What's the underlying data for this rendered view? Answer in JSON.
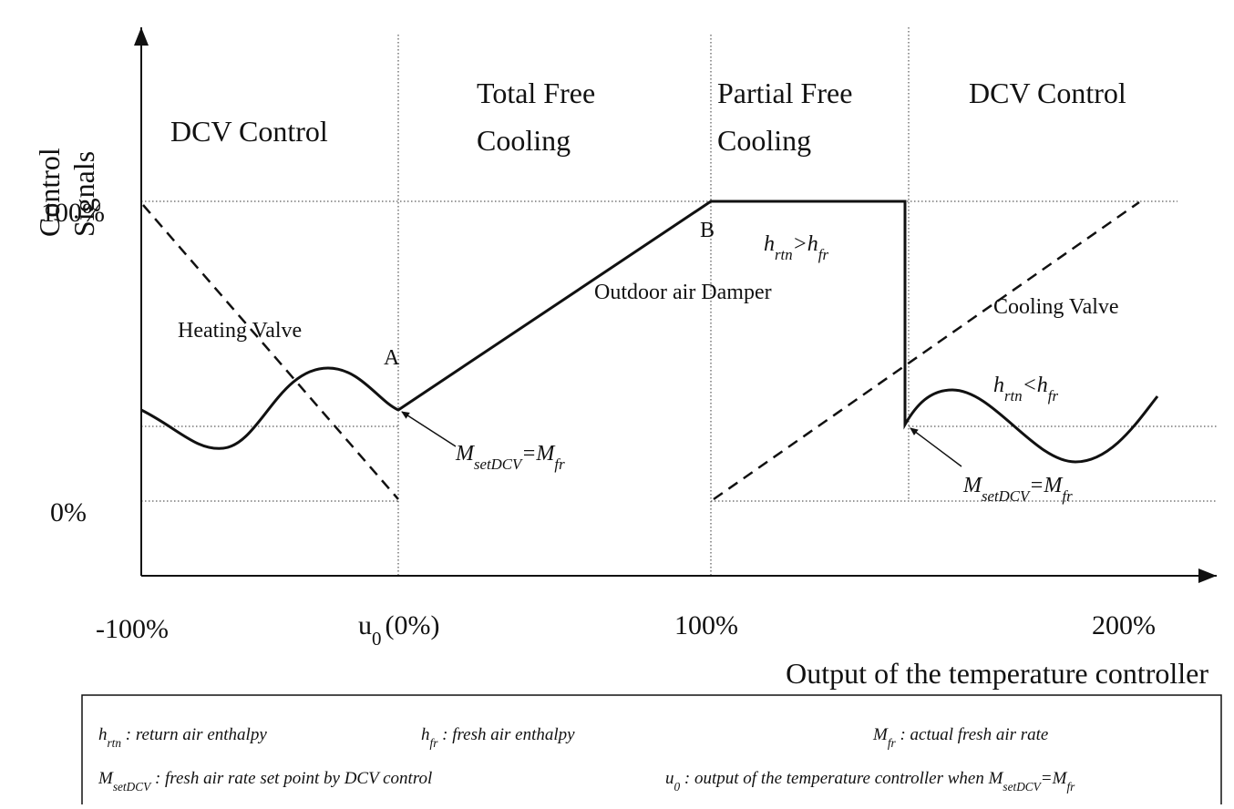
{
  "y_axis_title": [
    "Control",
    "Signals"
  ],
  "y_ticks": [
    "100%",
    "0%"
  ],
  "x_ticks": {
    "left": "-100%",
    "u0": {
      "symbol": "u",
      "sub": "0",
      "text": "(0%)"
    },
    "mid": "100%",
    "right": "200%"
  },
  "x_axis_title": "Output of the temperature controller",
  "regions": [
    [
      "DCV Control"
    ],
    [
      "Total Free",
      "Cooling"
    ],
    [
      "Partial Free",
      "Cooling"
    ],
    [
      "DCV Control"
    ]
  ],
  "curves": {
    "heating": "Heating Valve",
    "damper": "Outdoor air Damper",
    "cooling": "Cooling Valve"
  },
  "points": [
    "A",
    "B"
  ],
  "conditions": [
    {
      "h1": "h",
      "s1": "rtn",
      "op": ">",
      "h2": "h",
      "s2": "fr"
    },
    {
      "h1": "h",
      "s1": "rtn",
      "op": "<",
      "h2": "h",
      "s2": "fr"
    }
  ],
  "set_points": [
    {
      "m1": "M",
      "s1": "setDCV",
      "op": "=",
      "m2": "M",
      "s2": "fr"
    },
    {
      "m1": "M",
      "s1": "setDCV",
      "op": "=",
      "m2": "M",
      "s2": "fr"
    }
  ],
  "legend": {
    "hrtn": {
      "symbol": "h",
      "sub": "rtn",
      "text": " : return air enthalpy"
    },
    "hfr": {
      "symbol": "h",
      "sub": "fr",
      "text": " : fresh air enthalpy"
    },
    "mfr": {
      "symbol": "M",
      "sub": "fr",
      "text": " : actual fresh air rate"
    },
    "msetdcv": {
      "symbol": "M",
      "sub": "setDCV",
      "text": " : fresh air rate set point by DCV control"
    },
    "u0": {
      "symbol": "u",
      "sub": "0",
      "text": " : output of the temperature controller  when ",
      "m1": "M",
      "s1": "setDCV",
      "op": "=",
      "m2": "M",
      "s2": "fr"
    }
  }
}
